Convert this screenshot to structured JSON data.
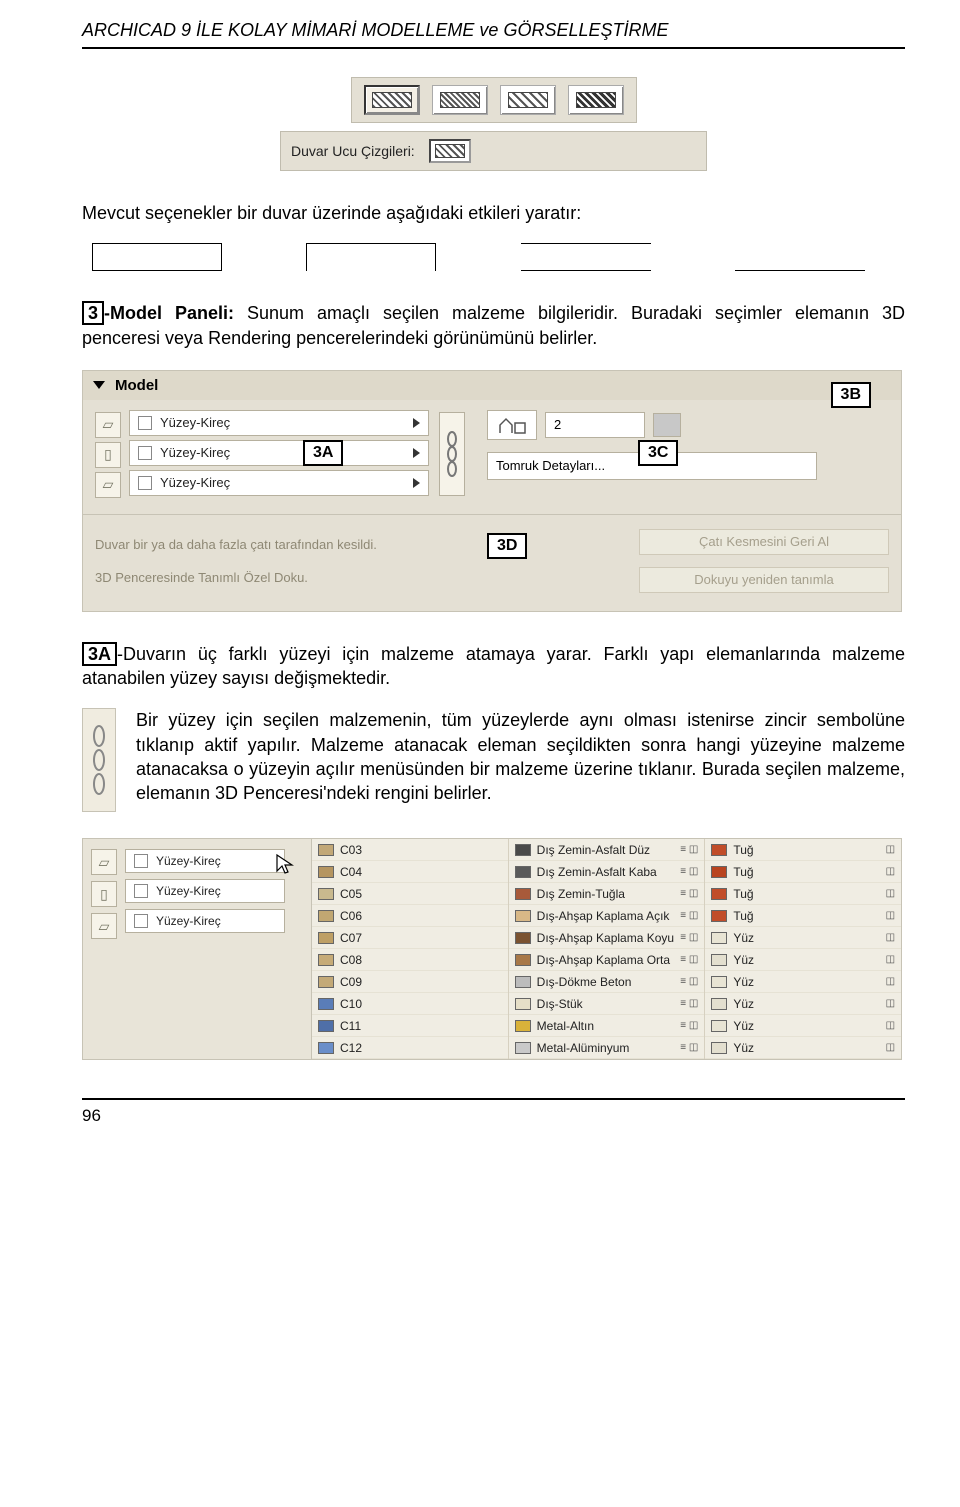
{
  "header": {
    "title": "ARCHICAD 9 İLE KOLAY MİMARİ MODELLEME ve GÖRSELLEŞTİRME"
  },
  "topPalette": {
    "options": [
      "hatch-1",
      "hatch-2",
      "hatch-3",
      "hatch-4"
    ]
  },
  "duvarUcu": {
    "label": "Duvar Ucu Çizgileri:"
  },
  "para1": "Mevcut seçenekler bir duvar üzerinde aşağıdaki etkileri yaratır:",
  "section3": {
    "tag": "3",
    "lead": "-Model Paneli:",
    "body": " Sunum amaçlı seçilen malzeme bilgileridir. Buradaki seçimler elemanın 3D penceresi veya Rendering pencerelerindeki görünümünü belirler."
  },
  "modelPanel": {
    "title": "Model",
    "surfaces": [
      "Yüzey-Kireç",
      "Yüzey-Kireç",
      "Yüzey-Kireç"
    ],
    "houseValue": "2",
    "tomruk": "Tomruk Detayları...",
    "callouts": {
      "a": "3A",
      "b": "3B",
      "c": "3C",
      "d": "3D"
    },
    "info": {
      "line1": "Duvar bir ya da daha fazla çatı tarafından kesildi.",
      "line2": "3D Penceresinde Tanımlı Özel Doku.",
      "btn1": "Çatı Kesmesini Geri Al",
      "btn2": "Dokuyu yeniden tanımla"
    }
  },
  "section3A": {
    "tag": "3A",
    "body": "-Duvarın üç farklı yüzeyi için malzeme atamaya yarar. Farklı yapı elemanlarında malzeme atanabilen yüzey sayısı değişmektedir."
  },
  "chainPara": "Bir yüzey için seçilen malzemenin, tüm yüzeylerde aynı olması istenirse zincir sembolüne tıklanıp aktif yapılır. Malzeme atanacak eleman seçildikten sonra hangi yüzeyine malzeme atanacaksa o yüzeyin açılır menüsünden bir malzeme üzerine tıklanır. Burada seçilen malzeme, elemanın 3D Penceresi'ndeki rengini belirler.",
  "materials": {
    "left": {
      "surfaces": [
        "Yüzey-Kireç",
        "Yüzey-Kireç",
        "Yüzey-Kireç"
      ]
    },
    "col1": [
      {
        "code": "C03",
        "color": "#c2a878"
      },
      {
        "code": "C04",
        "color": "#b59560"
      },
      {
        "code": "C05",
        "color": "#c9b98e"
      },
      {
        "code": "C06",
        "color": "#c1a772"
      },
      {
        "code": "C07",
        "color": "#be9f65"
      },
      {
        "code": "C08",
        "color": "#c6ab78"
      },
      {
        "code": "C09",
        "color": "#c3a977"
      },
      {
        "code": "C10",
        "color": "#5a7db8"
      },
      {
        "code": "C11",
        "color": "#4f6fa8"
      },
      {
        "code": "C12",
        "color": "#6a8ec9"
      }
    ],
    "col2": [
      {
        "name": "Dış Zemin-Asfalt Düz",
        "color": "#4a4a4a"
      },
      {
        "name": "Dış Zemin-Asfalt Kaba",
        "color": "#5a5a5a"
      },
      {
        "name": "Dış Zemin-Tuğla",
        "color": "#a85a3a"
      },
      {
        "name": "Dış-Ahşap Kaplama Açık",
        "color": "#d8b887"
      },
      {
        "name": "Dış-Ahşap Kaplama Koyu",
        "color": "#7a5230"
      },
      {
        "name": "Dış-Ahşap Kaplama Orta",
        "color": "#a87848"
      },
      {
        "name": "Dış-Dökme Beton",
        "color": "#bcbcbc"
      },
      {
        "name": "Dış-Stük",
        "color": "#e6dfc8"
      },
      {
        "name": "Metal-Altın",
        "color": "#d9b23a"
      },
      {
        "name": "Metal-Alüminyum",
        "color": "#c9c9c9"
      }
    ],
    "col3": [
      {
        "name": "Tuğ",
        "color": "#c14d2a"
      },
      {
        "name": "Tuğ",
        "color": "#b94420"
      },
      {
        "name": "Tuğ",
        "color": "#c14d2a"
      },
      {
        "name": "Tuğ",
        "color": "#c14d2a"
      },
      {
        "name": "Yüz",
        "color": "#e8e4d4"
      },
      {
        "name": "Yüz",
        "color": "#e3dfcf"
      },
      {
        "name": "Yüz",
        "color": "#e8e4d4"
      },
      {
        "name": "Yüz",
        "color": "#e3dfcf"
      },
      {
        "name": "Yüz",
        "color": "#e8e4d4"
      },
      {
        "name": "Yüz",
        "color": "#e3dfcf"
      }
    ]
  },
  "footer": {
    "page": "96"
  }
}
